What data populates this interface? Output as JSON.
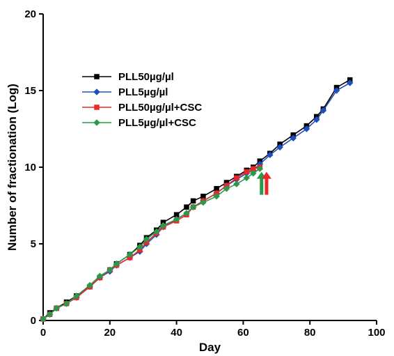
{
  "chart_data": {
    "type": "line",
    "title": "",
    "xlabel": "Day",
    "ylabel": "Number of fractionation (Log)",
    "xlim": [
      0,
      100
    ],
    "ylim": [
      0,
      20
    ],
    "xticks": [
      0,
      20,
      40,
      60,
      80,
      100
    ],
    "yticks": [
      0,
      5,
      10,
      15,
      20
    ],
    "grid": false,
    "legend_position": "upper-left",
    "series": [
      {
        "name": "PLL50µg/µl",
        "color": "#000000",
        "marker": "square",
        "x": [
          0,
          2,
          4,
          7,
          10,
          14,
          17,
          20,
          22,
          26,
          29,
          31,
          34,
          36,
          40,
          43,
          45,
          48,
          52,
          55,
          58,
          61,
          63,
          65,
          68,
          71,
          75,
          79,
          82,
          84,
          88,
          92
        ],
        "y": [
          0.1,
          0.5,
          0.8,
          1.2,
          1.6,
          2.2,
          2.8,
          3.3,
          3.7,
          4.3,
          4.9,
          5.4,
          5.9,
          6.4,
          6.9,
          7.4,
          7.8,
          8.1,
          8.6,
          9.0,
          9.4,
          9.8,
          10.0,
          10.4,
          10.9,
          11.5,
          12.1,
          12.7,
          13.3,
          13.8,
          15.2,
          15.7
        ]
      },
      {
        "name": "PLL5µg/µl",
        "color": "#1f4fbf",
        "marker": "diamond",
        "x": [
          0,
          2,
          4,
          7,
          10,
          14,
          17,
          20,
          22,
          26,
          29,
          31,
          34,
          36,
          40,
          43,
          45,
          48,
          52,
          55,
          58,
          61,
          63,
          65,
          68,
          71,
          75,
          79,
          82,
          84,
          88,
          92
        ],
        "y": [
          0.1,
          0.4,
          0.8,
          1.1,
          1.5,
          2.2,
          2.8,
          3.2,
          3.6,
          4.1,
          4.5,
          5.0,
          5.6,
          6.1,
          6.6,
          7.0,
          7.4,
          7.8,
          8.3,
          8.8,
          9.2,
          9.6,
          9.8,
          10.2,
          10.8,
          11.3,
          11.9,
          12.5,
          13.1,
          13.7,
          15.0,
          15.5
        ]
      },
      {
        "name": "PLL50µg/µl+CSC",
        "color": "#e8292a",
        "marker": "square",
        "x": [
          0,
          2,
          4,
          7,
          10,
          14,
          17,
          20,
          22,
          26,
          29,
          31,
          34,
          36,
          40,
          43,
          45,
          48,
          52,
          55,
          58,
          61,
          63,
          65
        ],
        "y": [
          0.1,
          0.4,
          0.8,
          1.1,
          1.5,
          2.2,
          2.8,
          3.3,
          3.6,
          4.1,
          4.6,
          5.1,
          5.7,
          6.1,
          6.5,
          6.9,
          7.4,
          7.8,
          8.3,
          8.8,
          9.3,
          9.7,
          9.9,
          10.0
        ]
      },
      {
        "name": "PLL5µg/µl+CSC",
        "color": "#2a9a4a",
        "marker": "diamond",
        "x": [
          0,
          2,
          4,
          7,
          10,
          14,
          17,
          20,
          22,
          26,
          29,
          31,
          34,
          36,
          40,
          43,
          45,
          48,
          52,
          55,
          58,
          61,
          63,
          65
        ],
        "y": [
          0.1,
          0.4,
          0.8,
          1.1,
          1.6,
          2.3,
          2.9,
          3.3,
          3.7,
          4.3,
          4.8,
          5.3,
          5.8,
          6.2,
          6.6,
          7.0,
          7.4,
          7.7,
          8.1,
          8.6,
          8.9,
          9.3,
          9.6,
          9.9
        ]
      }
    ],
    "annotations": [
      {
        "type": "arrow",
        "color": "#2a9a4a",
        "x": 65.5,
        "y_from": 8.2,
        "y_to": 9.7
      },
      {
        "type": "arrow",
        "color": "#e8292a",
        "x": 67,
        "y_from": 8.2,
        "y_to": 9.7
      }
    ]
  }
}
